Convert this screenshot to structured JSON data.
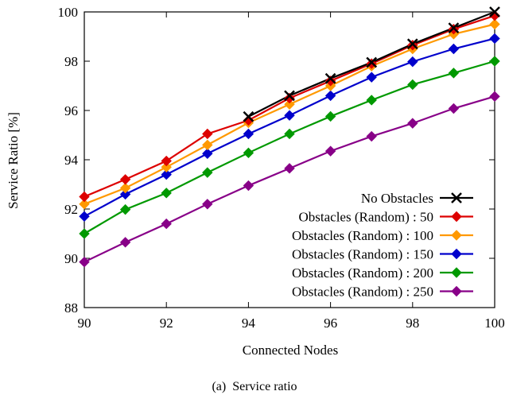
{
  "chart_data": {
    "type": "line",
    "caption": "(a)  Service ratio",
    "xlabel": "Connected Nodes",
    "ylabel": "Service Ratio [%]",
    "xlim": [
      90,
      100
    ],
    "ylim": [
      88,
      100
    ],
    "xticks": [
      90,
      92,
      94,
      96,
      98,
      100
    ],
    "yticks": [
      88,
      90,
      92,
      94,
      96,
      98,
      100
    ],
    "grid": false,
    "legend_position": "bottom-right",
    "x": [
      90,
      91,
      92,
      93,
      94,
      95,
      96,
      97,
      98,
      99,
      100
    ],
    "series": [
      {
        "name": "No Obstacles",
        "color": "#000000",
        "marker": "x",
        "values": [
          null,
          null,
          null,
          null,
          95.75,
          96.6,
          97.3,
          97.95,
          98.7,
          99.35,
          100.0
        ]
      },
      {
        "name": "Obstacles (Random) :   50",
        "color": "#dd0000",
        "marker": "diamond",
        "values": [
          92.5,
          93.2,
          93.95,
          95.05,
          95.6,
          96.5,
          97.2,
          97.9,
          98.65,
          99.3,
          99.85
        ]
      },
      {
        "name": "Obstacles (Random) : 100",
        "color": "#ff9900",
        "marker": "diamond",
        "values": [
          92.2,
          92.85,
          93.7,
          94.6,
          95.5,
          96.25,
          97.0,
          97.8,
          98.5,
          99.1,
          99.5
        ]
      },
      {
        "name": "Obstacles (Random) : 150",
        "color": "#0000cc",
        "marker": "diamond",
        "values": [
          91.7,
          92.6,
          93.4,
          94.25,
          95.05,
          95.8,
          96.6,
          97.35,
          97.98,
          98.5,
          98.92
        ]
      },
      {
        "name": "Obstacles (Random) : 200",
        "color": "#009900",
        "marker": "diamond",
        "values": [
          91.0,
          91.98,
          92.65,
          93.48,
          94.28,
          95.05,
          95.76,
          96.42,
          97.05,
          97.52,
          98.0
        ]
      },
      {
        "name": "Obstacles (Random) : 250",
        "color": "#880088",
        "marker": "diamond",
        "values": [
          89.85,
          90.65,
          91.4,
          92.2,
          92.95,
          93.65,
          94.35,
          94.95,
          95.48,
          96.08,
          96.57
        ]
      }
    ]
  }
}
